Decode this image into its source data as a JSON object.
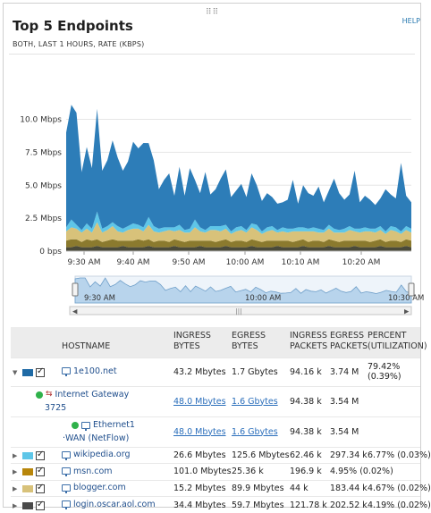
{
  "widget": {
    "title": "Top 5 Endpoints",
    "subtitle": "BOTH, LAST 1 HOURS, RATE (KBPS)",
    "help_label": "HELP"
  },
  "chart_data": {
    "type": "area",
    "ylabel": "",
    "y_ticks": [
      "10.0 Mbps",
      "7.5 Mbps",
      "5.0 Mbps",
      "2.5 Mbps",
      "0 bps"
    ],
    "ylim": [
      0,
      12
    ],
    "x_ticks": [
      "9:30 AM",
      "9:40 AM",
      "9:50 AM",
      "10:00 AM",
      "10:10 AM",
      "10:20 AM"
    ],
    "navigator_ticks": [
      "9:30 AM",
      "10:00 AM",
      "10:30 AM"
    ],
    "stacked": true,
    "series": [
      {
        "color": "#2d7db8",
        "values": [
          7.2,
          8.7,
          8.5,
          4.4,
          5.8,
          4.6,
          7.8,
          4.4,
          5.0,
          6.2,
          5.2,
          4.4,
          4.9,
          6.2,
          5.8,
          6.4,
          5.6,
          5.0,
          3.0,
          3.6,
          4.1,
          2.4,
          4.4,
          2.6,
          4.6,
          3.0,
          2.6,
          4.4,
          2.4,
          2.8,
          3.6,
          4.2,
          2.6,
          2.8,
          3.2,
          2.5,
          3.8,
          3.0,
          2.3,
          2.6,
          2.2,
          2.0,
          1.9,
          2.2,
          3.7,
          1.8,
          3.2,
          2.7,
          2.4,
          3.2,
          2.1,
          2.6,
          3.8,
          2.8,
          2.2,
          2.4,
          4.4,
          2.0,
          2.4,
          2.2,
          1.8,
          2.1,
          3.2,
          2.4,
          2.2,
          5.2,
          2.3,
          2.0
        ]
      },
      {
        "color": "#5ec6e8",
        "values": [
          0.3,
          0.6,
          0.3,
          0.2,
          0.4,
          0.3,
          0.8,
          0.3,
          0.3,
          0.3,
          0.4,
          0.3,
          0.3,
          0.4,
          0.3,
          0.3,
          0.6,
          0.4,
          0.3,
          0.3,
          0.2,
          0.3,
          0.4,
          0.2,
          0.3,
          0.6,
          0.3,
          0.2,
          0.3,
          0.3,
          0.4,
          0.3,
          0.2,
          0.3,
          0.3,
          0.2,
          0.3,
          0.4,
          0.2,
          0.3,
          0.3,
          0.2,
          0.3,
          0.3,
          0.2,
          0.3,
          0.3,
          0.2,
          0.3,
          0.3,
          0.2,
          0.3,
          0.3,
          0.2,
          0.3,
          0.3,
          0.2,
          0.3,
          0.3,
          0.2,
          0.3,
          0.3,
          0.2,
          0.3,
          0.3,
          0.2,
          0.3,
          0.3
        ]
      },
      {
        "color": "#d8c27a",
        "values": [
          0.7,
          0.9,
          0.8,
          0.7,
          0.8,
          0.6,
          1.3,
          0.7,
          0.8,
          1.0,
          0.7,
          0.6,
          0.8,
          0.9,
          0.8,
          0.7,
          1.1,
          0.8,
          0.6,
          0.7,
          0.9,
          0.6,
          0.8,
          0.7,
          0.6,
          1.0,
          0.7,
          0.6,
          0.8,
          0.9,
          0.7,
          0.8,
          0.6,
          0.7,
          0.8,
          0.7,
          0.9,
          0.8,
          0.6,
          0.7,
          0.8,
          0.6,
          0.7,
          0.6,
          0.8,
          0.7,
          0.6,
          0.8,
          0.7,
          0.6,
          0.7,
          0.8,
          0.6,
          0.7,
          0.6,
          0.8,
          0.7,
          0.6,
          0.7,
          0.8,
          0.6,
          0.7,
          0.6,
          0.8,
          0.7,
          0.6,
          0.7,
          0.6
        ]
      },
      {
        "color": "#8b7a2e",
        "values": [
          0.5,
          0.6,
          0.5,
          0.4,
          0.6,
          0.5,
          0.5,
          0.4,
          0.5,
          0.6,
          0.5,
          0.4,
          0.5,
          0.5,
          0.6,
          0.5,
          0.5,
          0.4,
          0.5,
          0.5,
          0.4,
          0.5,
          0.5,
          0.4,
          0.5,
          0.5,
          0.4,
          0.5,
          0.5,
          0.4,
          0.5,
          0.5,
          0.4,
          0.5,
          0.5,
          0.4,
          0.5,
          0.5,
          0.4,
          0.5,
          0.5,
          0.4,
          0.5,
          0.5,
          0.4,
          0.5,
          0.5,
          0.4,
          0.5,
          0.5,
          0.4,
          0.5,
          0.5,
          0.4,
          0.5,
          0.5,
          0.4,
          0.5,
          0.5,
          0.4,
          0.5,
          0.5,
          0.4,
          0.5,
          0.5,
          0.4,
          0.5,
          0.5
        ]
      },
      {
        "color": "#4a4a3a",
        "values": [
          0.3,
          0.3,
          0.4,
          0.3,
          0.3,
          0.3,
          0.4,
          0.3,
          0.3,
          0.3,
          0.3,
          0.4,
          0.3,
          0.3,
          0.3,
          0.3,
          0.4,
          0.3,
          0.3,
          0.3,
          0.3,
          0.4,
          0.3,
          0.3,
          0.3,
          0.3,
          0.4,
          0.3,
          0.3,
          0.3,
          0.3,
          0.4,
          0.3,
          0.3,
          0.3,
          0.3,
          0.4,
          0.3,
          0.3,
          0.3,
          0.3,
          0.4,
          0.3,
          0.3,
          0.3,
          0.3,
          0.4,
          0.3,
          0.3,
          0.3,
          0.3,
          0.4,
          0.3,
          0.3,
          0.3,
          0.3,
          0.4,
          0.3,
          0.3,
          0.3,
          0.3,
          0.4,
          0.3,
          0.3,
          0.3,
          0.3,
          0.4,
          0.3
        ]
      }
    ]
  },
  "table": {
    "headers": {
      "hostname": "HOSTNAME",
      "ingress_bytes_1": "INGRESS",
      "ingress_bytes_2": "BYTES",
      "egress_bytes_1": "EGRESS",
      "egress_bytes_2": "BYTES",
      "ingress_packets_1": "INGRESS",
      "ingress_packets_2": "PACKETS",
      "egress_packets_1": "EGRESS",
      "egress_packets_2": "PACKETS",
      "percent_1": "PERCENT",
      "percent_2": "(UTILIZATION)"
    },
    "rows": [
      {
        "host": "1e100.net",
        "color": "#1f6aa5",
        "ingress_bytes": "43.2 Mbytes",
        "egress_bytes": "1.7 Gbytes",
        "ingress_packets": "94.16 k",
        "egress_packets": "3.74 M",
        "percent": "79.42%",
        "percent_2": "(0.39%)"
      },
      {
        "host": "wikipedia.org",
        "color": "#5ec6e8",
        "ingress_bytes": "26.6 Mbytes",
        "egress_bytes": "125.6 Mbytes",
        "ingress_packets": "62.46 k",
        "egress_packets": "297.34 k",
        "percent": "6.77% (0.03%)"
      },
      {
        "host": "msn.com",
        "color": "#b8860b",
        "ingress_bytes": "101.0 Mbytes",
        "egress_bytes": "25.36 k",
        "ingress_packets": "196.9 k",
        "egress_packets": "4.95% (0.02%)",
        "percent": ""
      },
      {
        "host": "blogger.com",
        "color": "#d8c27a",
        "ingress_bytes": "15.2 Mbytes",
        "egress_bytes": "89.9 Mbytes",
        "ingress_packets": "44 k",
        "egress_packets": "183.44 k",
        "percent": "4.67% (0.02%)"
      },
      {
        "host": "login.oscar.aol.com",
        "color": "#4a4a4a",
        "ingress_bytes": "34.4 Mbytes",
        "egress_bytes": "59.7 Mbytes",
        "ingress_packets": "121.78 k",
        "egress_packets": "202.52 k",
        "percent": "4.19% (0.02%)"
      }
    ],
    "sub_rows": [
      {
        "name_1": "Internet Gateway",
        "name_2": "3725",
        "ingress_bytes": "48.0 Mbytes",
        "egress_bytes": "1.6 Gbytes",
        "ingress_packets": "94.38 k",
        "egress_packets": "3.54 M"
      },
      {
        "name_1": "Ethernet1",
        "name_2": "·WAN (NetFlow)",
        "ingress_bytes": "48.0 Mbytes",
        "egress_bytes": "1.6 Gbytes",
        "ingress_packets": "94.38 k",
        "egress_packets": "3.54 M"
      }
    ]
  }
}
